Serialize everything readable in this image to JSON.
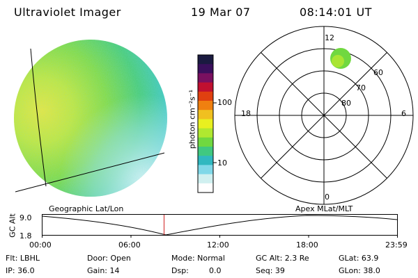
{
  "header": {
    "title": "Ultraviolet Imager",
    "date": "19 Mar 07",
    "time": "08:14:01 UT"
  },
  "colorbar": {
    "unit_label": "photon cm⁻²s⁻¹",
    "ticks": [
      "100",
      "10"
    ],
    "colors": [
      "#1a1a40",
      "#3a0f5c",
      "#7a1060",
      "#c01030",
      "#e04010",
      "#f08010",
      "#f0c020",
      "#e8f020",
      "#b0e830",
      "#70d840",
      "#40c880",
      "#30b8c0",
      "#80d8e8",
      "#d0f0f0",
      "#ffffff"
    ]
  },
  "polar_plot": {
    "mlt_labels": {
      "top": "12",
      "left": "18",
      "right": "6",
      "bottom": "0"
    },
    "lat_labels": [
      "60",
      "70",
      "80"
    ]
  },
  "labels": {
    "geographic": "Geographic Lat/Lon",
    "apex": "Apex MLat/MLT"
  },
  "alt_plot": {
    "axis_label": "GC Alt",
    "y_max": "9.0",
    "y_min": "1.8",
    "time_ticks": [
      "00:00",
      "06:00",
      "12:00",
      "18:00",
      "23:59"
    ],
    "current_marker_hours": 8.2345
  },
  "info": {
    "filter": "Flt: LBHL",
    "ip": "IP: 36.0",
    "door": "Door: Open",
    "gain": "Gain: 14",
    "mode": "Mode: Normal",
    "dsp_label": "Dsp:",
    "dsp_value": "0.0",
    "gc_alt": "GC Alt: 2.3 Re",
    "seq": "Seq: 39",
    "glat": "GLat: 63.9",
    "glon": "GLon: 38.0"
  }
}
